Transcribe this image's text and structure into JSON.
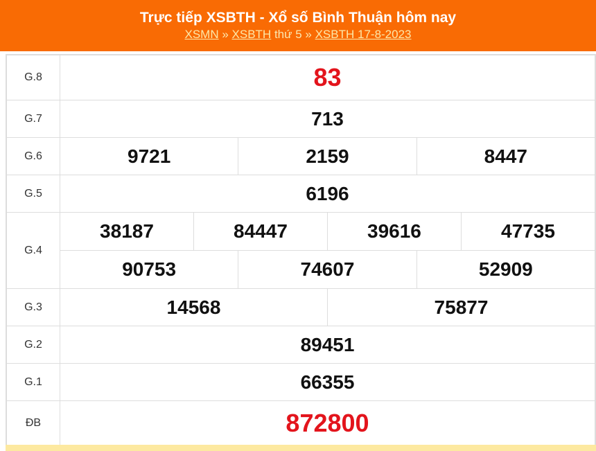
{
  "header": {
    "title": "Trực tiếp XSBTH - Xổ số Bình Thuận hôm nay",
    "breadcrumb": {
      "link1": "XSMN",
      "sep1": " » ",
      "link2": "XSBTH",
      "text": " thứ 5 » ",
      "link3": "XSBTH 17-8-2023"
    }
  },
  "results": {
    "g8": {
      "label": "G.8",
      "values": [
        "83"
      ]
    },
    "g7": {
      "label": "G.7",
      "values": [
        "713"
      ]
    },
    "g6": {
      "label": "G.6",
      "values": [
        "9721",
        "2159",
        "8447"
      ]
    },
    "g5": {
      "label": "G.5",
      "values": [
        "6196"
      ]
    },
    "g4": {
      "label": "G.4",
      "values": [
        "38187",
        "84447",
        "39616",
        "47735",
        "90753",
        "74607",
        "52909"
      ]
    },
    "g3": {
      "label": "G.3",
      "values": [
        "14568",
        "75877"
      ]
    },
    "g2": {
      "label": "G.2",
      "values": [
        "89451"
      ]
    },
    "g1": {
      "label": "G.1",
      "values": [
        "66355"
      ]
    },
    "db": {
      "label": "ĐB",
      "values": [
        "872800"
      ]
    }
  },
  "colors": {
    "header": "#f96b04",
    "highlight": "#e3141c"
  }
}
